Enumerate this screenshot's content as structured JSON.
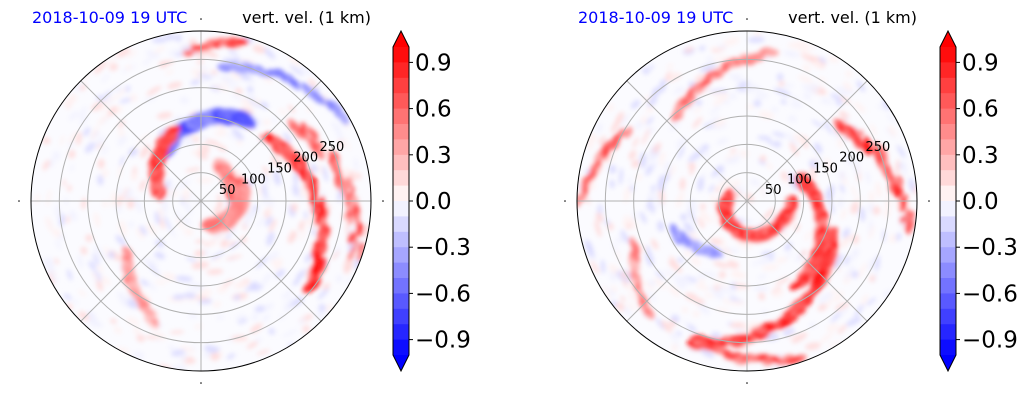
{
  "panels": [
    {
      "id": "left",
      "date_title": "2018-10-09 19 UTC",
      "var_title": "vert. vel. (1 km)"
    },
    {
      "id": "right",
      "date_title": "2018-10-09 19 UTC",
      "var_title": "vert. vel. (1 km)"
    }
  ],
  "chart_data": {
    "type": "heatmap",
    "projection": "polar",
    "variable": "vert. vel. (1 km)",
    "radial_ticks": [
      50,
      100,
      150,
      200,
      250
    ],
    "radial_tick_labels": [
      "50",
      "100",
      "150",
      "200",
      "250"
    ],
    "radial_max": 300,
    "angular_gridlines_deg": [
      0,
      45,
      90,
      135,
      180,
      225,
      270,
      315
    ],
    "grid": true,
    "colormap": "bwr",
    "colorbar": {
      "vmin": -1.0,
      "vmax": 1.0,
      "extend": "both",
      "ticks": [
        -0.9,
        -0.6,
        -0.3,
        0.0,
        0.3,
        0.6,
        0.9
      ],
      "tick_labels": [
        "−0.9",
        "−0.6",
        "−0.3",
        "0.0",
        "0.3",
        "0.6",
        "0.9"
      ],
      "levels": 20
    },
    "colors": {
      "low": "#0000ff",
      "mid": "#ffffff",
      "high": "#ff0000",
      "title_date": "#0000ff"
    }
  }
}
